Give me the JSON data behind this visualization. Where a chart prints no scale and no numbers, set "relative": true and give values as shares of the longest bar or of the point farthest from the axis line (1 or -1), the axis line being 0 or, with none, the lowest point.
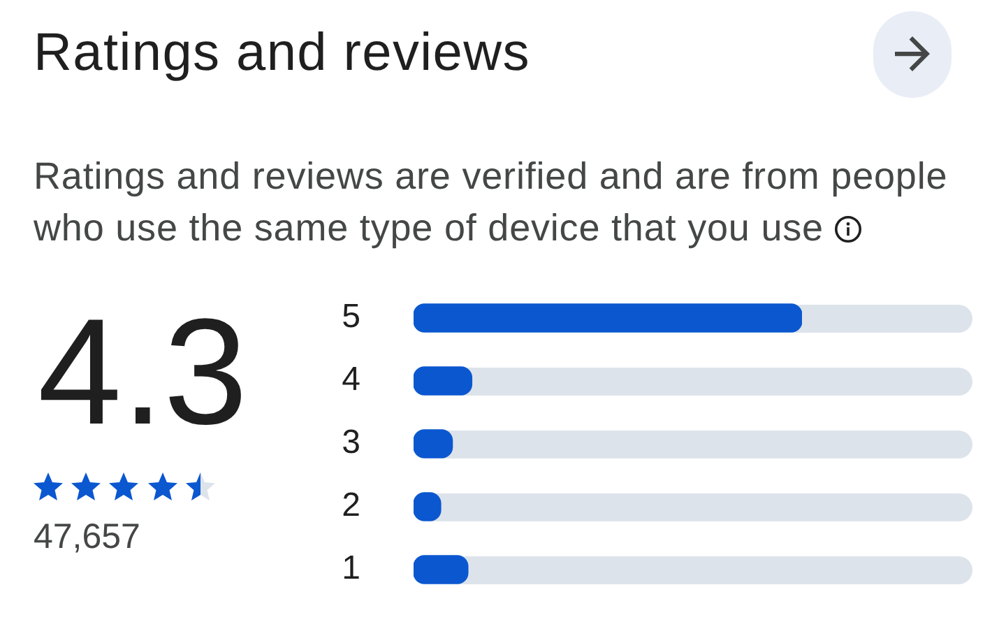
{
  "chart_data": {
    "type": "bar",
    "orientation": "horizontal",
    "relative": true,
    "title": "Ratings and reviews",
    "subtitle": "Ratings and reviews are verified and are from people who use the same type of device that you use",
    "categories": [
      "5",
      "4",
      "3",
      "2",
      "1"
    ],
    "values": [
      1,
      0.15,
      0.1,
      0.07,
      0.14
    ],
    "color": "#0b57d0",
    "annotations": [
      "4.3",
      "47,657"
    ]
  }
}
